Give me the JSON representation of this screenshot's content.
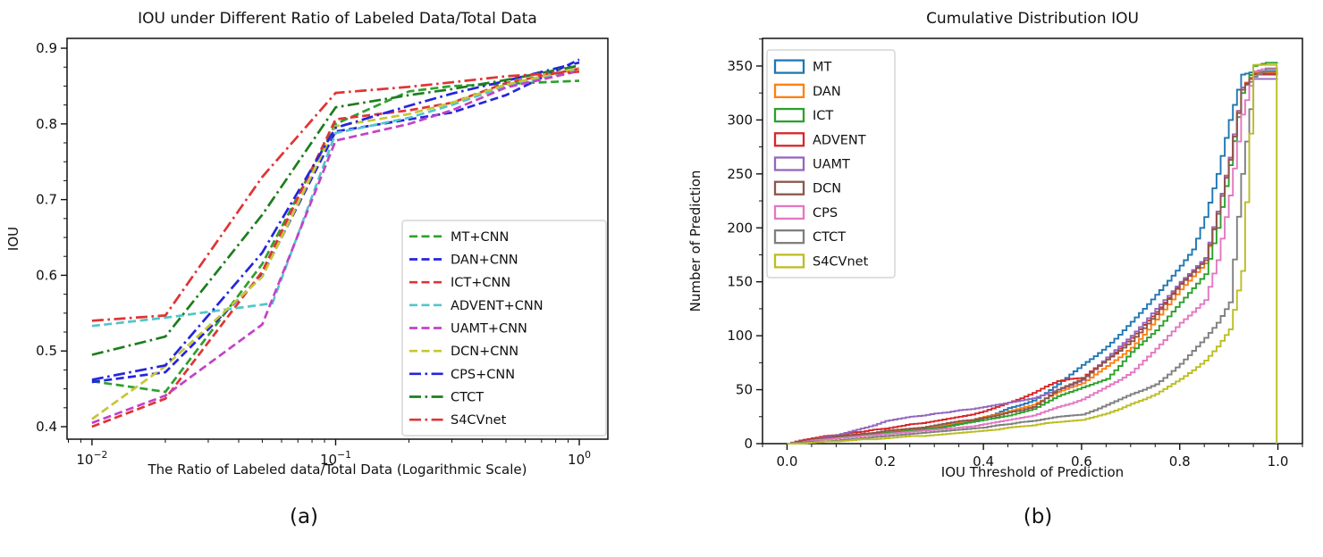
{
  "captions": {
    "a": "(a)",
    "b": "(b)"
  },
  "chart_data": [
    {
      "id": "iou-vs-labeled-ratio",
      "type": "line",
      "title": "IOU under Different Ratio of Labeled Data/Total Data",
      "xlabel": "The Ratio of Labeled data/Total Data (Logarithmic Scale)",
      "ylabel": "IOU",
      "xscale": "log",
      "xlim": [
        0.0079,
        1.31
      ],
      "ylim": [
        0.3835,
        0.913
      ],
      "grid": false,
      "legend_position": "lower-right-inset",
      "legend_marker": "line",
      "xticks": [
        {
          "value": 0.01,
          "base": "10",
          "exp": "−2"
        },
        {
          "value": 0.1,
          "base": "10",
          "exp": "−1"
        },
        {
          "value": 1,
          "base": "10",
          "exp": "0"
        }
      ],
      "yticks": [
        {
          "value": 0.4,
          "label": "0.4"
        },
        {
          "value": 0.5,
          "label": "0.5"
        },
        {
          "value": 0.6,
          "label": "0.6"
        },
        {
          "value": 0.7,
          "label": "0.7"
        },
        {
          "value": 0.8,
          "label": "0.8"
        },
        {
          "value": 0.9,
          "label": "0.9"
        }
      ],
      "x": [
        0.01,
        0.02,
        0.05,
        0.1,
        0.2,
        0.3,
        0.5,
        1.0
      ],
      "series": [
        {
          "name": "MT+CNN",
          "color": "#2fa02f",
          "dash": "dashed",
          "y": [
            0.46,
            0.446,
            0.615,
            0.8,
            0.843,
            0.85,
            0.853,
            0.857
          ]
        },
        {
          "name": "DAN+CNN",
          "color": "#2525dd",
          "dash": "dashed",
          "y": [
            0.459,
            0.472,
            0.6,
            0.79,
            0.806,
            0.815,
            0.838,
            0.885
          ]
        },
        {
          "name": "ICT+CNN",
          "color": "#e03434",
          "dash": "dashed",
          "y": [
            0.4,
            0.437,
            0.605,
            0.806,
            0.818,
            0.828,
            0.854,
            0.873
          ]
        },
        {
          "name": "ADVENT+CNN",
          "color": "#52c5cb",
          "dash": "dashed",
          "x": [
            0.01,
            0.02,
            0.055,
            0.1,
            0.2,
            0.3,
            0.5,
            1.0
          ],
          "y": [
            0.533,
            0.544,
            0.563,
            0.788,
            0.808,
            0.825,
            0.85,
            0.872
          ]
        },
        {
          "name": "UAMT+CNN",
          "color": "#c342c8",
          "dash": "dashed",
          "y": [
            0.405,
            0.441,
            0.535,
            0.778,
            0.8,
            0.818,
            0.848,
            0.87
          ]
        },
        {
          "name": "DCN+CNN",
          "color": "#c6c636",
          "dash": "dashed",
          "y": [
            0.41,
            0.48,
            0.598,
            0.797,
            0.813,
            0.828,
            0.852,
            0.874
          ]
        },
        {
          "name": "CPS+CNN",
          "color": "#2525dd",
          "dash": "dashdot",
          "y": [
            0.462,
            0.481,
            0.63,
            0.795,
            0.824,
            0.84,
            0.857,
            0.881
          ]
        },
        {
          "name": "CTCT",
          "color": "#1e7d1e",
          "dash": "dashdot",
          "y": [
            0.495,
            0.519,
            0.68,
            0.822,
            0.838,
            0.846,
            0.858,
            0.877
          ]
        },
        {
          "name": "S4CVnet",
          "color": "#e03434",
          "dash": "dashdot",
          "y": [
            0.54,
            0.547,
            0.73,
            0.841,
            0.849,
            0.855,
            0.863,
            0.869
          ]
        }
      ]
    },
    {
      "id": "cumulative-distribution-iou",
      "type": "line",
      "step": true,
      "title": "Cumulative Distribution IOU",
      "xlabel": "IOU Threshold of Prediction",
      "ylabel": "Number of Prediction",
      "xscale": "linear",
      "xlim": [
        -0.05,
        1.05
      ],
      "ylim": [
        0,
        375.6
      ],
      "grid": false,
      "legend_position": "upper-left-inset",
      "legend_marker": "patch",
      "xticks": [
        {
          "value": 0.0,
          "label": "0.0"
        },
        {
          "value": 0.2,
          "label": "0.2"
        },
        {
          "value": 0.4,
          "label": "0.4"
        },
        {
          "value": 0.6,
          "label": "0.6"
        },
        {
          "value": 0.8,
          "label": "0.8"
        },
        {
          "value": 1.0,
          "label": "1.0"
        }
      ],
      "yticks": [
        {
          "value": 0,
          "label": "0"
        },
        {
          "value": 50,
          "label": "50"
        },
        {
          "value": 100,
          "label": "100"
        },
        {
          "value": 150,
          "label": "150"
        },
        {
          "value": 200,
          "label": "200"
        },
        {
          "value": 250,
          "label": "250"
        },
        {
          "value": 300,
          "label": "300"
        },
        {
          "value": 350,
          "label": "350"
        }
      ],
      "x": [
        0,
        0.025,
        0.05,
        0.075,
        0.1,
        0.125,
        0.15,
        0.175,
        0.2,
        0.225,
        0.25,
        0.275,
        0.3,
        0.325,
        0.35,
        0.375,
        0.4,
        0.425,
        0.45,
        0.475,
        0.5,
        0.525,
        0.55,
        0.575,
        0.6,
        0.625,
        0.65,
        0.675,
        0.7,
        0.725,
        0.75,
        0.775,
        0.8,
        0.825,
        0.85,
        0.875,
        0.9,
        0.925,
        0.95,
        0.975,
        1.0
      ],
      "series": [
        {
          "name": "MT",
          "color": "#1f77b4",
          "y": [
            0,
            1,
            3,
            4,
            5,
            6,
            7,
            8,
            9,
            11,
            12,
            14,
            15,
            17,
            19,
            21,
            24,
            28,
            33,
            36,
            40,
            47,
            55,
            64,
            73,
            81,
            90,
            101,
            113,
            125,
            138,
            151,
            165,
            180,
            210,
            250,
            300,
            342,
            345,
            345,
            345
          ]
        },
        {
          "name": "DAN",
          "color": "#ff7f0e",
          "y": [
            0,
            2,
            4,
            6,
            7,
            8,
            9,
            10,
            11,
            12,
            13,
            15,
            16,
            18,
            20,
            22,
            25,
            27,
            30,
            33,
            36,
            42,
            48,
            52,
            56,
            64,
            72,
            80,
            89,
            101,
            115,
            129,
            143,
            155,
            167,
            215,
            265,
            330,
            344,
            344,
            344
          ]
        },
        {
          "name": "ICT",
          "color": "#2ca02c",
          "y": [
            0,
            2,
            3,
            5,
            6,
            7,
            8,
            9,
            10,
            11,
            12,
            13,
            14,
            16,
            18,
            20,
            22,
            24,
            26,
            29,
            32,
            38,
            44,
            48,
            52,
            56,
            60,
            72,
            85,
            95,
            105,
            118,
            131,
            144,
            157,
            200,
            258,
            325,
            350,
            353,
            353
          ]
        },
        {
          "name": "ADVENT",
          "color": "#d62728",
          "y": [
            0,
            3,
            5,
            7,
            8,
            10,
            11,
            13,
            14,
            16,
            18,
            19,
            21,
            23,
            25,
            27,
            30,
            34,
            38,
            42,
            47,
            53,
            58,
            60,
            61,
            70,
            78,
            88,
            98,
            110,
            122,
            135,
            149,
            160,
            172,
            215,
            265,
            330,
            342,
            342,
            342
          ]
        },
        {
          "name": "UAMT",
          "color": "#9467bd",
          "y": [
            0,
            2,
            4,
            6,
            8,
            11,
            14,
            17,
            21,
            23,
            25,
            26,
            28,
            29,
            31,
            32,
            34,
            36,
            38,
            40,
            42,
            46,
            50,
            54,
            59,
            69,
            80,
            90,
            100,
            112,
            125,
            137,
            150,
            161,
            172,
            215,
            265,
            330,
            338,
            338,
            338
          ]
        },
        {
          "name": "DCN",
          "color": "#8c564b",
          "y": [
            0,
            2,
            4,
            5,
            7,
            8,
            9,
            10,
            12,
            13,
            14,
            15,
            17,
            19,
            21,
            22,
            24,
            26,
            29,
            31,
            34,
            42,
            50,
            55,
            60,
            69,
            78,
            86,
            95,
            107,
            120,
            134,
            148,
            159,
            170,
            213,
            263,
            328,
            343,
            343,
            343
          ]
        },
        {
          "name": "CPS",
          "color": "#e377c2",
          "y": [
            0,
            1,
            3,
            4,
            5,
            6,
            7,
            8,
            9,
            10,
            11,
            12,
            13,
            14,
            15,
            16,
            18,
            20,
            22,
            24,
            26,
            30,
            34,
            37,
            41,
            47,
            53,
            59,
            66,
            77,
            88,
            100,
            112,
            122,
            133,
            170,
            230,
            305,
            345,
            348,
            348
          ]
        },
        {
          "name": "CTCT",
          "color": "#7f7f7f",
          "y": [
            0,
            1,
            2,
            2,
            3,
            4,
            5,
            6,
            7,
            8,
            9,
            10,
            11,
            12,
            13,
            14,
            15,
            17,
            18,
            20,
            21,
            23,
            25,
            26,
            27,
            31,
            36,
            41,
            46,
            50,
            55,
            64,
            74,
            86,
            98,
            112,
            131,
            250,
            340,
            347,
            347
          ]
        },
        {
          "name": "S4CVnet",
          "color": "#bcbd22",
          "x": [
            0,
            0.025,
            0.05,
            0.075,
            0.1,
            0.125,
            0.15,
            0.175,
            0.2,
            0.225,
            0.25,
            0.275,
            0.3,
            0.325,
            0.35,
            0.375,
            0.4,
            0.425,
            0.45,
            0.475,
            0.5,
            0.525,
            0.55,
            0.575,
            0.6,
            0.625,
            0.65,
            0.675,
            0.7,
            0.725,
            0.75,
            0.775,
            0.8,
            0.825,
            0.85,
            0.875,
            0.9,
            0.925,
            0.95,
            0.975,
            0.9975,
            0.9975
          ],
          "y": [
            0,
            0,
            1,
            2,
            2,
            3,
            4,
            4,
            5,
            6,
            7,
            7,
            8,
            9,
            10,
            11,
            12,
            13,
            15,
            16,
            17,
            19,
            20,
            21,
            22,
            25,
            28,
            32,
            37,
            41,
            46,
            53,
            60,
            68,
            77,
            90,
            106,
            160,
            351,
            351,
            351,
            0
          ]
        }
      ]
    }
  ]
}
